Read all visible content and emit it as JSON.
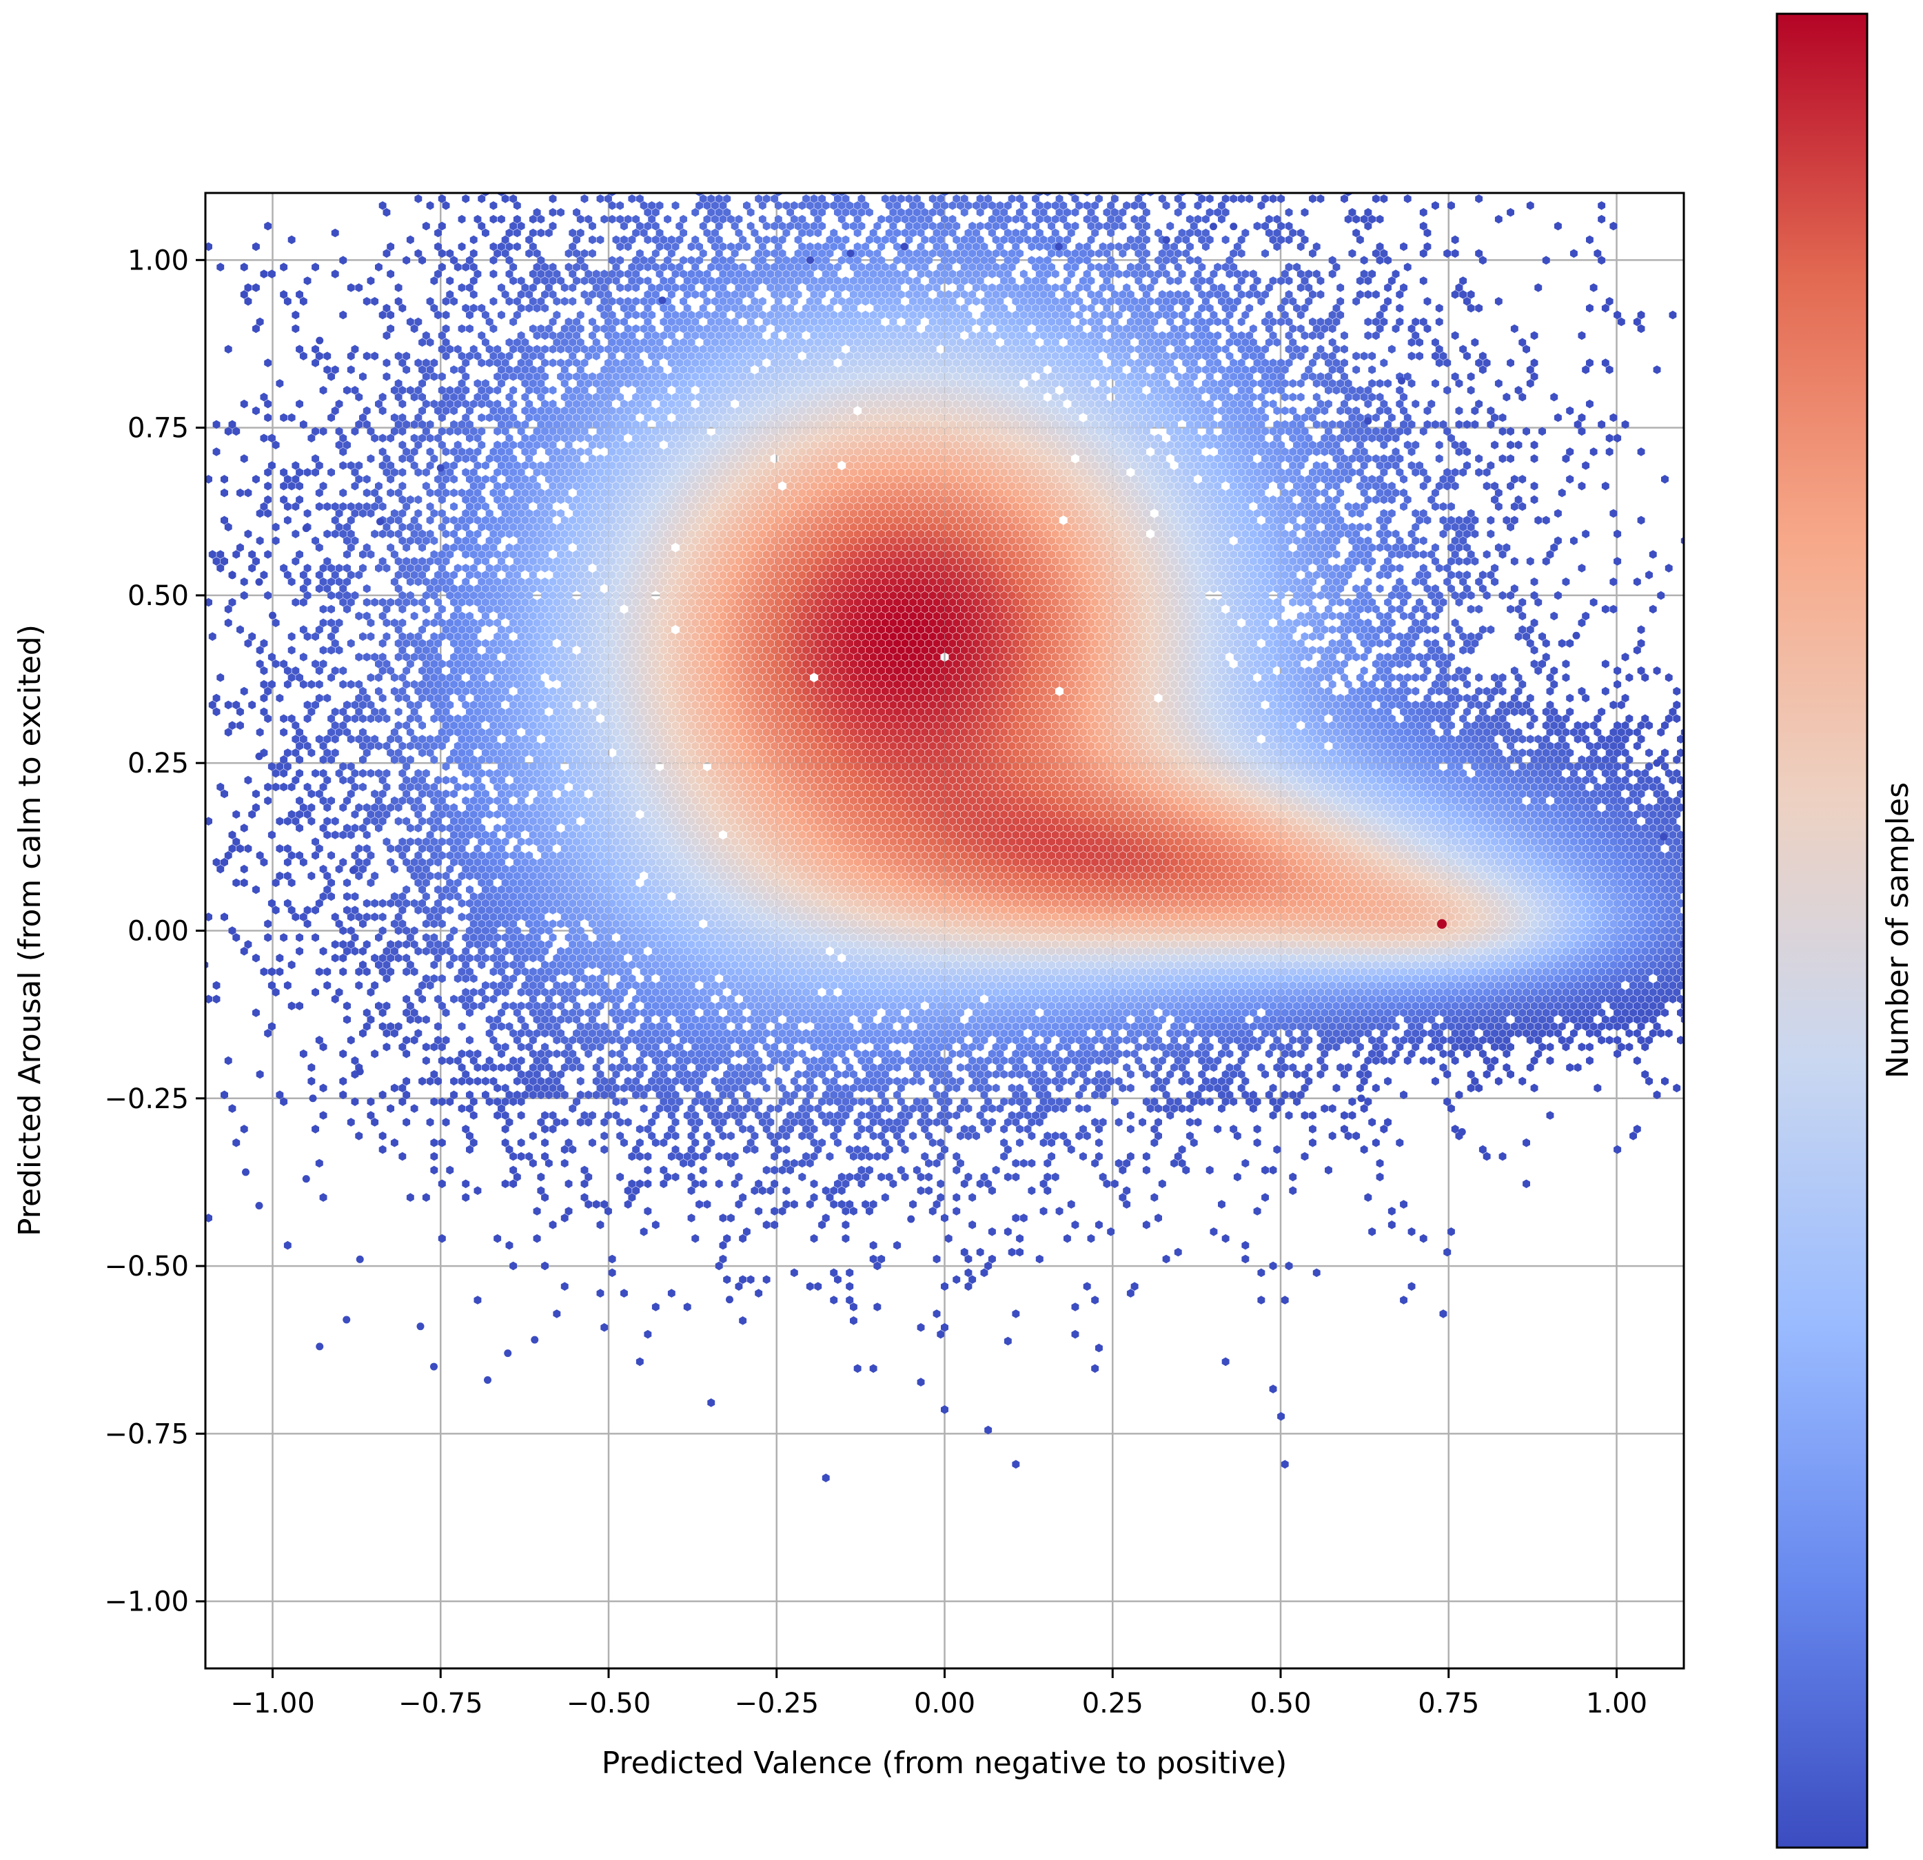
{
  "chart_data": {
    "type": "heatmap",
    "title": "",
    "xlabel": "Predicted Valence (from negative to positive)",
    "ylabel": "Predicted Arousal (from calm to excited)",
    "colorbar_label": "Number of samples",
    "colormap": [
      "#3b4cc0",
      "#6788ee",
      "#9abbff",
      "#c9d7f0",
      "#edd1c2",
      "#f7a889",
      "#e26952",
      "#b40426"
    ],
    "xlim": [
      -1.1,
      1.1
    ],
    "ylim": [
      -1.1,
      1.1
    ],
    "xticks": [
      -1.0,
      -0.75,
      -0.5,
      -0.25,
      0.0,
      0.25,
      0.5,
      0.75,
      1.0
    ],
    "xtick_labels": [
      "−1.00",
      "−0.75",
      "−0.50",
      "−0.25",
      "0.00",
      "0.25",
      "0.50",
      "0.75",
      "1.00"
    ],
    "yticks": [
      1.0,
      0.75,
      0.5,
      0.25,
      0.0,
      -0.25,
      -0.5,
      -0.75,
      -1.0
    ],
    "ytick_labels": [
      "1.00",
      "0.75",
      "0.50",
      "0.25",
      "0.00",
      "−0.25",
      "−0.50",
      "−0.75",
      "−1.00"
    ],
    "grid": true,
    "density_clusters": [
      {
        "x": -0.05,
        "y": 0.45,
        "sx": 0.38,
        "sy": 0.33,
        "weight": 0.5
      },
      {
        "x": 0.45,
        "y": 0.08,
        "sx": 0.35,
        "sy": 0.11,
        "weight": 0.3
      },
      {
        "x": 0.78,
        "y": 0.0,
        "sx": 0.18,
        "sy": 0.06,
        "weight": 0.15
      },
      {
        "x": -0.35,
        "y": 0.05,
        "sx": 0.28,
        "sy": 0.22,
        "weight": 0.05
      }
    ],
    "peak": {
      "x": 0.74,
      "y": 0.01
    },
    "outliers": [
      [
        -1.06,
        0.53
      ],
      [
        -1.02,
        0.52
      ],
      [
        -1.0,
        0.47
      ],
      [
        -0.93,
        0.88
      ],
      [
        -0.95,
        0.6
      ],
      [
        -1.02,
        0.26
      ],
      [
        -1.04,
        -0.36
      ],
      [
        -1.02,
        -0.41
      ],
      [
        -0.95,
        -0.37
      ],
      [
        -0.93,
        -0.62
      ],
      [
        -0.89,
        -0.58
      ],
      [
        -0.88,
        0.09
      ],
      [
        -0.87,
        -0.49
      ],
      [
        -0.78,
        -0.59
      ],
      [
        -0.76,
        -0.65
      ],
      [
        -0.68,
        -0.67
      ],
      [
        -0.65,
        -0.63
      ],
      [
        -0.61,
        -0.61
      ],
      [
        -0.42,
        0.94
      ],
      [
        -0.32,
        -0.55
      ],
      [
        -0.05,
        -0.43
      ],
      [
        0.17,
        1.02
      ],
      [
        0.33,
        1.03
      ],
      [
        0.4,
        1.05
      ],
      [
        0.43,
        1.05
      ],
      [
        -0.06,
        1.02
      ],
      [
        -0.14,
        1.01
      ],
      [
        -0.2,
        1.0
      ],
      [
        0.62,
        -0.25
      ],
      [
        0.77,
        -0.3
      ],
      [
        0.94,
        0.44
      ],
      [
        1.06,
        0.25
      ],
      [
        1.07,
        0.14
      ],
      [
        1.1,
        -0.02
      ],
      [
        0.68,
        0.82
      ],
      [
        0.63,
        0.76
      ],
      [
        -0.84,
        0.61
      ],
      [
        -0.75,
        0.69
      ],
      [
        -0.87,
        -0.21
      ],
      [
        -0.94,
        -0.25
      ]
    ]
  }
}
